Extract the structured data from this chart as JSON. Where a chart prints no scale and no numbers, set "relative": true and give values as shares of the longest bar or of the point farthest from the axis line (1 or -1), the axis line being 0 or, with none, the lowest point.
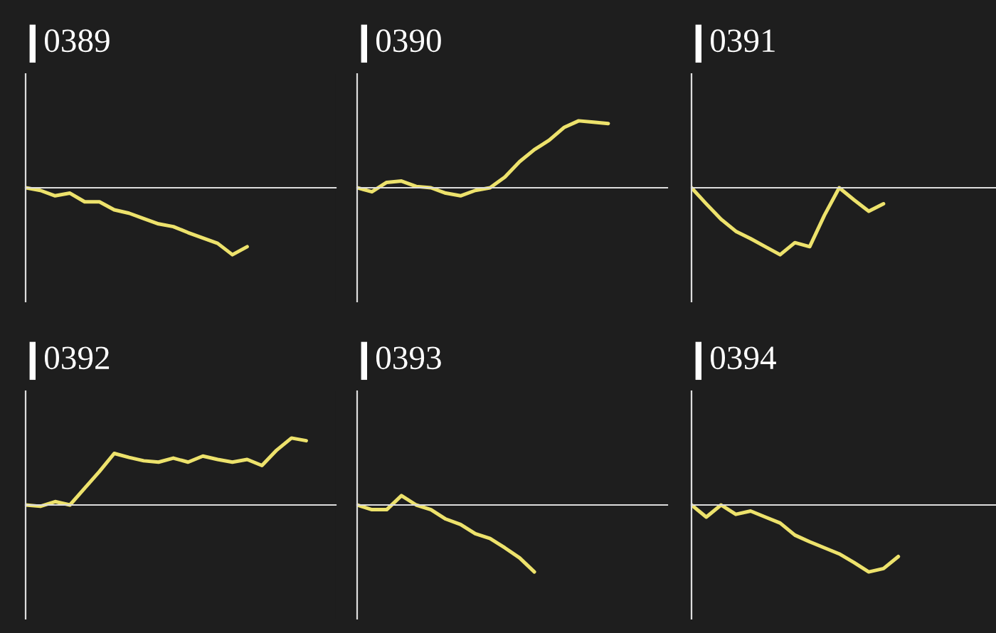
{
  "chart_data": [
    {
      "type": "line",
      "title": "0389",
      "relative": true,
      "categories": [
        null,
        null,
        null,
        null,
        null,
        null,
        null,
        null,
        null,
        null,
        null,
        null,
        null,
        null,
        null,
        null,
        null,
        null,
        null,
        null,
        null,
        null
      ],
      "series": [
        {
          "color": "#ede26c",
          "values": [
            0,
            -0.04,
            -0.12,
            -0.08,
            -0.21,
            -0.21,
            -0.33,
            -0.38,
            -0.46,
            -0.54,
            -0.58,
            -0.67,
            -0.75,
            -0.83,
            -1,
            -0.88,
            null,
            null,
            null,
            null,
            null,
            null
          ]
        }
      ]
    },
    {
      "type": "line",
      "title": "0390",
      "relative": true,
      "categories": [
        null,
        null,
        null,
        null,
        null,
        null,
        null,
        null,
        null,
        null,
        null,
        null,
        null,
        null,
        null,
        null,
        null,
        null,
        null,
        null,
        null,
        null
      ],
      "series": [
        {
          "color": "#ede26c",
          "values": [
            0,
            -0.06,
            0.08,
            0.1,
            0.02,
            0,
            -0.08,
            -0.12,
            -0.04,
            0,
            0.16,
            0.39,
            0.57,
            0.71,
            0.9,
            1,
            0.98,
            0.96,
            null,
            null,
            null,
            null
          ]
        }
      ]
    },
    {
      "type": "line",
      "title": "0391",
      "relative": true,
      "categories": [
        null,
        null,
        null,
        null,
        null,
        null,
        null,
        null,
        null,
        null,
        null,
        null,
        null,
        null,
        null,
        null,
        null,
        null,
        null,
        null,
        null,
        null
      ],
      "series": [
        {
          "color": "#ede26c",
          "values": [
            0,
            -0.24,
            -0.47,
            -0.65,
            -0.76,
            -0.88,
            -1,
            -0.82,
            -0.88,
            -0.41,
            0,
            -0.18,
            -0.35,
            -0.24,
            null,
            null,
            null,
            null,
            null,
            null,
            null,
            null
          ]
        }
      ]
    },
    {
      "type": "line",
      "title": "0392",
      "relative": true,
      "categories": [
        null,
        null,
        null,
        null,
        null,
        null,
        null,
        null,
        null,
        null,
        null,
        null,
        null,
        null,
        null,
        null,
        null,
        null,
        null,
        null,
        null,
        null
      ],
      "series": [
        {
          "color": "#ede26c",
          "values": [
            0,
            -0.02,
            0.05,
            0,
            0.25,
            0.5,
            0.77,
            0.71,
            0.66,
            0.64,
            0.7,
            0.64,
            0.73,
            0.68,
            0.64,
            0.68,
            0.59,
            0.82,
            1,
            0.96,
            null,
            null
          ]
        }
      ]
    },
    {
      "type": "line",
      "title": "0393",
      "relative": true,
      "categories": [
        null,
        null,
        null,
        null,
        null,
        null,
        null,
        null,
        null,
        null,
        null,
        null,
        null,
        null,
        null,
        null,
        null,
        null,
        null,
        null,
        null,
        null
      ],
      "series": [
        {
          "color": "#ede26c",
          "values": [
            0,
            -0.07,
            -0.07,
            0.14,
            0,
            -0.07,
            -0.21,
            -0.29,
            -0.43,
            -0.5,
            -0.64,
            -0.79,
            -1,
            null,
            null,
            null,
            null,
            null,
            null,
            null,
            null,
            null
          ]
        }
      ]
    },
    {
      "type": "line",
      "title": "0394",
      "relative": true,
      "categories": [
        null,
        null,
        null,
        null,
        null,
        null,
        null,
        null,
        null,
        null,
        null,
        null,
        null,
        null,
        null,
        null,
        null,
        null,
        null,
        null,
        null,
        null
      ],
      "series": [
        {
          "color": "#ede26c",
          "values": [
            0,
            -0.18,
            0,
            -0.14,
            -0.09,
            -0.18,
            -0.27,
            -0.45,
            -0.55,
            -0.64,
            -0.73,
            -0.86,
            -1,
            -0.95,
            -0.77,
            null,
            null,
            null,
            null,
            null,
            null,
            null
          ]
        }
      ]
    }
  ]
}
